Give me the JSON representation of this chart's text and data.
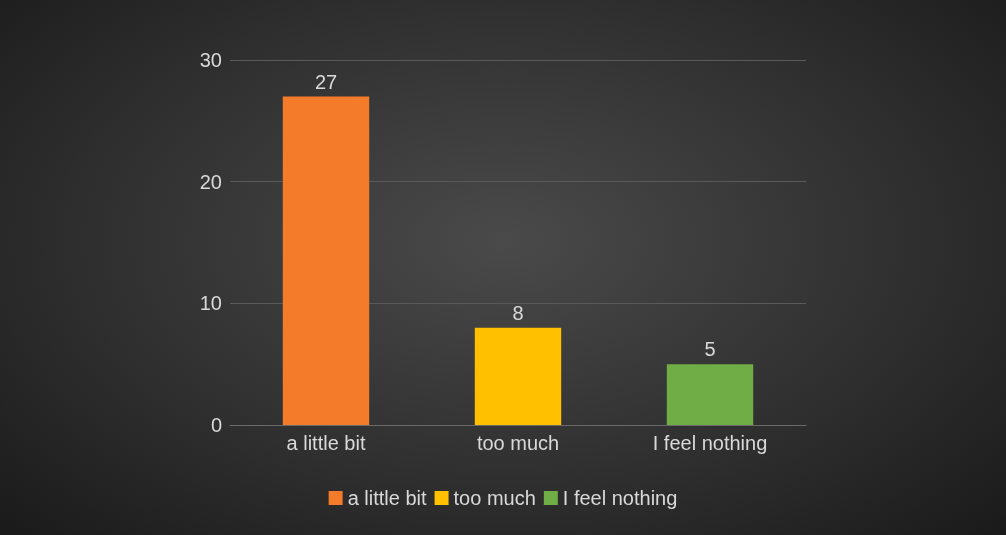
{
  "chart_data": {
    "type": "bar",
    "categories": [
      "a little bit",
      "too much",
      "I feel nothing"
    ],
    "series": [
      {
        "name": "a little bit",
        "color": "#f47b2a",
        "values": [
          27,
          null,
          null
        ]
      },
      {
        "name": "too much",
        "color": "#ffc000",
        "values": [
          null,
          8,
          null
        ]
      },
      {
        "name": "I feel nothing",
        "color": "#70ad47",
        "values": [
          null,
          null,
          5
        ]
      }
    ],
    "stacked": true,
    "ylim": [
      0,
      30
    ],
    "yticks": [
      0,
      10,
      20,
      30
    ],
    "grid": "y",
    "legend": "bottom",
    "data_labels": true
  }
}
